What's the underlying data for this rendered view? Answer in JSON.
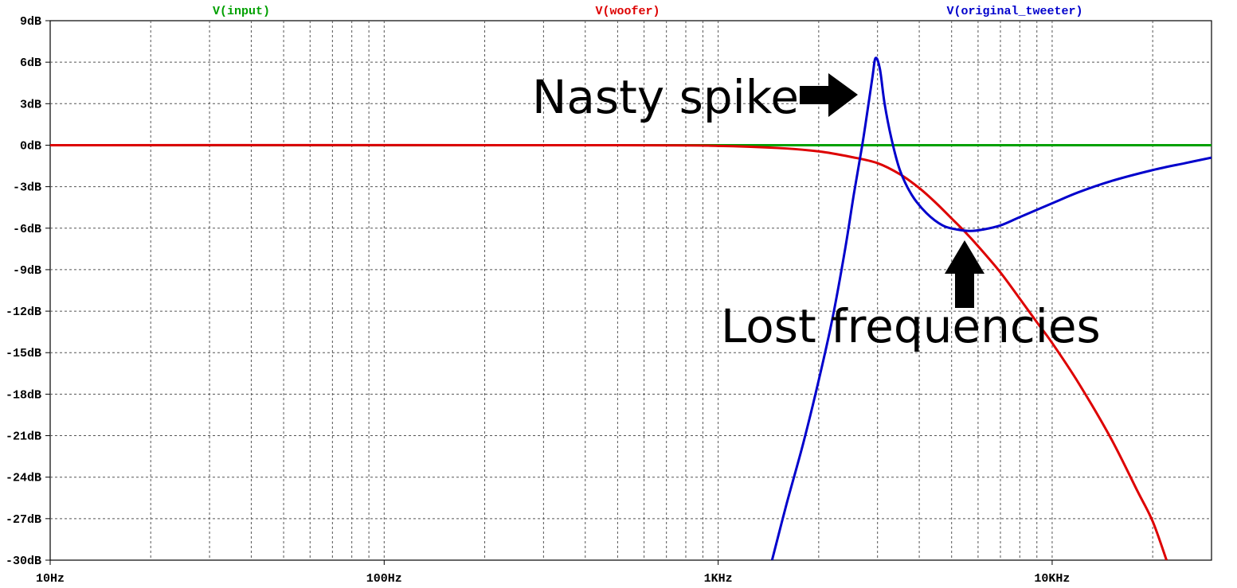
{
  "chart_data": {
    "type": "line",
    "x_scale": "log",
    "xlim": [
      10,
      30000
    ],
    "ylim": [
      -30,
      9
    ],
    "grid": true,
    "x_major_ticks": [
      {
        "value": 10,
        "label": "10Hz"
      },
      {
        "value": 100,
        "label": "100Hz"
      },
      {
        "value": 1000,
        "label": "1KHz"
      },
      {
        "value": 10000,
        "label": "10KHz"
      }
    ],
    "y_ticks": [
      {
        "value": 9,
        "label": "9dB"
      },
      {
        "value": 6,
        "label": "6dB"
      },
      {
        "value": 3,
        "label": "3dB"
      },
      {
        "value": 0,
        "label": "0dB"
      },
      {
        "value": -3,
        "label": "-3dB"
      },
      {
        "value": -6,
        "label": "-6dB"
      },
      {
        "value": -9,
        "label": "-9dB"
      },
      {
        "value": -12,
        "label": "-12dB"
      },
      {
        "value": -15,
        "label": "-15dB"
      },
      {
        "value": -18,
        "label": "-18dB"
      },
      {
        "value": -21,
        "label": "-21dB"
      },
      {
        "value": -24,
        "label": "-24dB"
      },
      {
        "value": -27,
        "label": "-27dB"
      },
      {
        "value": -30,
        "label": "-30dB"
      }
    ],
    "series": [
      {
        "name": "V(input)",
        "color": "#00a000",
        "points": [
          [
            10,
            0
          ],
          [
            30000,
            0
          ]
        ]
      },
      {
        "name": "V(woofer)",
        "color": "#dd0000",
        "points": [
          [
            10,
            0
          ],
          [
            500,
            0
          ],
          [
            1000,
            -0.05
          ],
          [
            1500,
            -0.2
          ],
          [
            2000,
            -0.45
          ],
          [
            2500,
            -0.85
          ],
          [
            3000,
            -1.3
          ],
          [
            3500,
            -2.1
          ],
          [
            4000,
            -3.1
          ],
          [
            4500,
            -4.2
          ],
          [
            5000,
            -5.3
          ],
          [
            5500,
            -6.3
          ],
          [
            6000,
            -7.3
          ],
          [
            7000,
            -9.2
          ],
          [
            8000,
            -11.1
          ],
          [
            9000,
            -12.8
          ],
          [
            10000,
            -14.3
          ],
          [
            12000,
            -17.2
          ],
          [
            15000,
            -21.2
          ],
          [
            18000,
            -25.0
          ],
          [
            20000,
            -27.2
          ],
          [
            22000,
            -30
          ]
        ]
      },
      {
        "name": "V(original_tweeter)",
        "color": "#0000cc",
        "points": [
          [
            1450,
            -30
          ],
          [
            1600,
            -26
          ],
          [
            1800,
            -21.5
          ],
          [
            2000,
            -17
          ],
          [
            2200,
            -12.5
          ],
          [
            2400,
            -7.5
          ],
          [
            2550,
            -3.5
          ],
          [
            2700,
            0
          ],
          [
            2800,
            2.5
          ],
          [
            2900,
            5
          ],
          [
            2960,
            6.3
          ],
          [
            3050,
            5.5
          ],
          [
            3150,
            3
          ],
          [
            3300,
            0.5
          ],
          [
            3500,
            -1.8
          ],
          [
            3800,
            -3.6
          ],
          [
            4200,
            -4.9
          ],
          [
            4700,
            -5.8
          ],
          [
            5200,
            -6.1
          ],
          [
            5700,
            -6.2
          ],
          [
            6200,
            -6.1
          ],
          [
            7000,
            -5.8
          ],
          [
            8000,
            -5.2
          ],
          [
            10000,
            -4.2
          ],
          [
            12000,
            -3.4
          ],
          [
            15000,
            -2.6
          ],
          [
            20000,
            -1.8
          ],
          [
            25000,
            -1.3
          ],
          [
            30000,
            -0.9
          ]
        ]
      }
    ],
    "annotations": [
      {
        "text": "Nasty spike",
        "points_to": [
          2950,
          6.3
        ],
        "arrow": "right"
      },
      {
        "text": "Lost frequencies",
        "points_to": [
          5500,
          -6.2
        ],
        "arrow": "up"
      }
    ]
  }
}
